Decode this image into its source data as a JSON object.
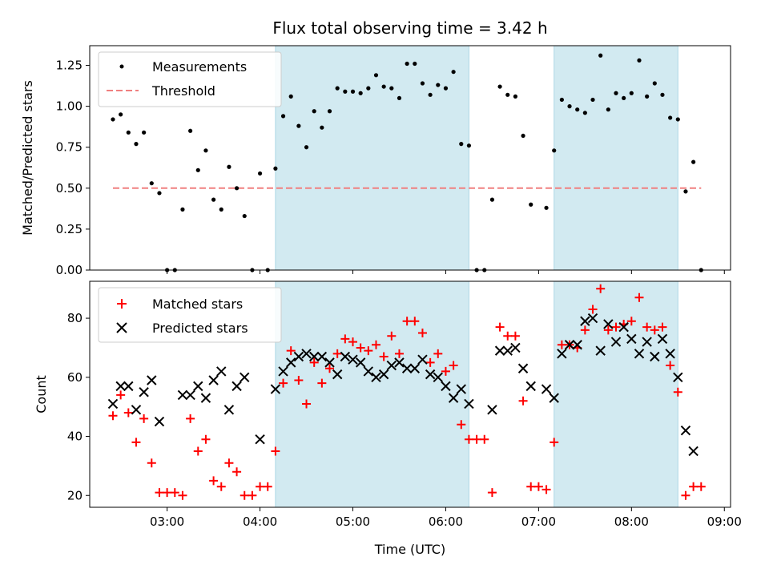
{
  "chart_data": {
    "type": "scatter",
    "title": "Flux total observing time = 3.42 h",
    "colors": {
      "measurements": "#000000",
      "threshold": "#f08080",
      "observing_span": "#add8e6",
      "matched": "#ff0000",
      "predicted": "#000000"
    },
    "x_axis": {
      "label": "Time (UTC)",
      "ticks": [
        "03:00",
        "04:00",
        "05:00",
        "06:00",
        "07:00",
        "08:00",
        "09:00"
      ],
      "range": [
        "02:10",
        "09:04"
      ]
    },
    "shaded_intervals": [
      [
        "04:10",
        "06:15"
      ],
      [
        "07:10",
        "08:30"
      ]
    ],
    "top_panel": {
      "ylabel": "Matched/Predicted stars",
      "ylim": [
        0,
        1.37
      ],
      "yticks": [
        "0.00",
        "0.25",
        "0.50",
        "0.75",
        "1.00",
        "1.25"
      ],
      "legend": {
        "position": "upper-left",
        "entries": [
          "Measurements",
          "Threshold"
        ]
      },
      "threshold": {
        "value": 0.5,
        "x_range": [
          "02:25",
          "08:45"
        ]
      },
      "series": [
        {
          "name": "Measurements",
          "points": [
            [
              "02:25",
              0.92
            ],
            [
              "02:30",
              0.95
            ],
            [
              "02:35",
              0.84
            ],
            [
              "02:40",
              0.77
            ],
            [
              "02:45",
              0.84
            ],
            [
              "02:50",
              0.53
            ],
            [
              "02:55",
              0.47
            ],
            [
              "03:00",
              0.0
            ],
            [
              "03:05",
              0.0
            ],
            [
              "03:10",
              0.37
            ],
            [
              "03:15",
              0.85
            ],
            [
              "03:20",
              0.61
            ],
            [
              "03:25",
              0.73
            ],
            [
              "03:30",
              0.43
            ],
            [
              "03:35",
              0.37
            ],
            [
              "03:40",
              0.63
            ],
            [
              "03:45",
              0.5
            ],
            [
              "03:50",
              0.33
            ],
            [
              "03:55",
              0.0
            ],
            [
              "04:00",
              0.59
            ],
            [
              "04:05",
              0.0
            ],
            [
              "04:10",
              0.62
            ],
            [
              "04:15",
              0.94
            ],
            [
              "04:20",
              1.06
            ],
            [
              "04:25",
              0.88
            ],
            [
              "04:30",
              0.75
            ],
            [
              "04:35",
              0.97
            ],
            [
              "04:40",
              0.87
            ],
            [
              "04:45",
              0.97
            ],
            [
              "04:50",
              1.11
            ],
            [
              "04:55",
              1.09
            ],
            [
              "05:00",
              1.09
            ],
            [
              "05:05",
              1.08
            ],
            [
              "05:10",
              1.11
            ],
            [
              "05:15",
              1.19
            ],
            [
              "05:20",
              1.12
            ],
            [
              "05:25",
              1.11
            ],
            [
              "05:30",
              1.05
            ],
            [
              "05:35",
              1.26
            ],
            [
              "05:40",
              1.26
            ],
            [
              "05:45",
              1.14
            ],
            [
              "05:50",
              1.07
            ],
            [
              "05:55",
              1.13
            ],
            [
              "06:00",
              1.11
            ],
            [
              "06:05",
              1.21
            ],
            [
              "06:10",
              0.77
            ],
            [
              "06:15",
              0.76
            ],
            [
              "06:20",
              0.0
            ],
            [
              "06:25",
              0.0
            ],
            [
              "06:30",
              0.43
            ],
            [
              "06:35",
              1.12
            ],
            [
              "06:40",
              1.07
            ],
            [
              "06:45",
              1.06
            ],
            [
              "06:50",
              0.82
            ],
            [
              "06:55",
              0.4
            ],
            [
              "07:05",
              0.38
            ],
            [
              "07:10",
              0.73
            ],
            [
              "07:15",
              1.04
            ],
            [
              "07:20",
              1.0
            ],
            [
              "07:25",
              0.98
            ],
            [
              "07:30",
              0.96
            ],
            [
              "07:35",
              1.04
            ],
            [
              "07:40",
              1.31
            ],
            [
              "07:45",
              0.98
            ],
            [
              "07:50",
              1.08
            ],
            [
              "07:55",
              1.05
            ],
            [
              "08:00",
              1.08
            ],
            [
              "08:05",
              1.28
            ],
            [
              "08:10",
              1.06
            ],
            [
              "08:15",
              1.14
            ],
            [
              "08:20",
              1.07
            ],
            [
              "08:25",
              0.93
            ],
            [
              "08:30",
              0.92
            ],
            [
              "08:35",
              0.48
            ],
            [
              "08:40",
              0.66
            ],
            [
              "08:45",
              0.0
            ]
          ]
        }
      ]
    },
    "bottom_panel": {
      "ylabel": "Count",
      "ylim": [
        16,
        92.5
      ],
      "yticks": [
        "20",
        "40",
        "60",
        "80"
      ],
      "legend": {
        "position": "upper-left",
        "entries": [
          "Matched stars",
          "Predicted stars"
        ]
      },
      "series": [
        {
          "name": "Matched stars",
          "marker": "plus",
          "points": [
            [
              "02:25",
              47
            ],
            [
              "02:30",
              54
            ],
            [
              "02:35",
              48
            ],
            [
              "02:40",
              38
            ],
            [
              "02:45",
              46
            ],
            [
              "02:50",
              31
            ],
            [
              "02:55",
              21
            ],
            [
              "03:00",
              21
            ],
            [
              "03:05",
              21
            ],
            [
              "03:10",
              20
            ],
            [
              "03:15",
              46
            ],
            [
              "03:20",
              35
            ],
            [
              "03:25",
              39
            ],
            [
              "03:30",
              25
            ],
            [
              "03:35",
              23
            ],
            [
              "03:40",
              31
            ],
            [
              "03:45",
              28
            ],
            [
              "03:50",
              20
            ],
            [
              "03:55",
              20
            ],
            [
              "04:00",
              23
            ],
            [
              "04:05",
              23
            ],
            [
              "04:10",
              35
            ],
            [
              "04:15",
              58
            ],
            [
              "04:20",
              69
            ],
            [
              "04:25",
              59
            ],
            [
              "04:30",
              51
            ],
            [
              "04:35",
              65
            ],
            [
              "04:40",
              58
            ],
            [
              "04:45",
              63
            ],
            [
              "04:50",
              68
            ],
            [
              "04:55",
              73
            ],
            [
              "05:00",
              72
            ],
            [
              "05:05",
              70
            ],
            [
              "05:10",
              69
            ],
            [
              "05:15",
              71
            ],
            [
              "05:20",
              67
            ],
            [
              "05:25",
              74
            ],
            [
              "05:30",
              68
            ],
            [
              "05:35",
              79
            ],
            [
              "05:40",
              79
            ],
            [
              "05:45",
              75
            ],
            [
              "05:50",
              65
            ],
            [
              "05:55",
              68
            ],
            [
              "06:00",
              62
            ],
            [
              "06:05",
              64
            ],
            [
              "06:10",
              44
            ],
            [
              "06:15",
              39
            ],
            [
              "06:20",
              39
            ],
            [
              "06:25",
              39
            ],
            [
              "06:30",
              21
            ],
            [
              "06:35",
              77
            ],
            [
              "06:40",
              74
            ],
            [
              "06:45",
              74
            ],
            [
              "06:50",
              52
            ],
            [
              "06:55",
              23
            ],
            [
              "07:00",
              23
            ],
            [
              "07:05",
              22
            ],
            [
              "07:10",
              38
            ],
            [
              "07:15",
              71
            ],
            [
              "07:20",
              71
            ],
            [
              "07:25",
              70
            ],
            [
              "07:30",
              76
            ],
            [
              "07:35",
              83
            ],
            [
              "07:40",
              90
            ],
            [
              "07:45",
              76
            ],
            [
              "07:50",
              77
            ],
            [
              "07:55",
              78
            ],
            [
              "08:00",
              79
            ],
            [
              "08:05",
              87
            ],
            [
              "08:10",
              77
            ],
            [
              "08:15",
              76
            ],
            [
              "08:20",
              77
            ],
            [
              "08:25",
              64
            ],
            [
              "08:30",
              55
            ],
            [
              "08:35",
              20
            ],
            [
              "08:40",
              23
            ],
            [
              "08:45",
              23
            ]
          ]
        },
        {
          "name": "Predicted stars",
          "marker": "x",
          "points": [
            [
              "02:25",
              51
            ],
            [
              "02:30",
              57
            ],
            [
              "02:35",
              57
            ],
            [
              "02:40",
              49
            ],
            [
              "02:45",
              55
            ],
            [
              "02:50",
              59
            ],
            [
              "02:55",
              45
            ],
            [
              "03:10",
              54
            ],
            [
              "03:15",
              54
            ],
            [
              "03:20",
              57
            ],
            [
              "03:25",
              53
            ],
            [
              "03:30",
              59
            ],
            [
              "03:35",
              62
            ],
            [
              "03:40",
              49
            ],
            [
              "03:45",
              57
            ],
            [
              "03:50",
              60
            ],
            [
              "04:00",
              39
            ],
            [
              "04:10",
              56
            ],
            [
              "04:15",
              62
            ],
            [
              "04:20",
              65
            ],
            [
              "04:25",
              67
            ],
            [
              "04:30",
              68
            ],
            [
              "04:35",
              67
            ],
            [
              "04:40",
              67
            ],
            [
              "04:45",
              65
            ],
            [
              "04:50",
              61
            ],
            [
              "04:55",
              67
            ],
            [
              "05:00",
              66
            ],
            [
              "05:05",
              65
            ],
            [
              "05:10",
              62
            ],
            [
              "05:15",
              60
            ],
            [
              "05:20",
              61
            ],
            [
              "05:25",
              64
            ],
            [
              "05:30",
              65
            ],
            [
              "05:35",
              63
            ],
            [
              "05:40",
              63
            ],
            [
              "05:45",
              66
            ],
            [
              "05:50",
              61
            ],
            [
              "05:55",
              60
            ],
            [
              "06:00",
              57
            ],
            [
              "06:05",
              53
            ],
            [
              "06:10",
              56
            ],
            [
              "06:15",
              51
            ],
            [
              "06:30",
              49
            ],
            [
              "06:35",
              69
            ],
            [
              "06:40",
              69
            ],
            [
              "06:45",
              70
            ],
            [
              "06:50",
              63
            ],
            [
              "06:55",
              57
            ],
            [
              "07:05",
              56
            ],
            [
              "07:10",
              53
            ],
            [
              "07:15",
              68
            ],
            [
              "07:20",
              71
            ],
            [
              "07:25",
              71
            ],
            [
              "07:30",
              79
            ],
            [
              "07:35",
              80
            ],
            [
              "07:40",
              69
            ],
            [
              "07:45",
              78
            ],
            [
              "07:50",
              72
            ],
            [
              "07:55",
              77
            ],
            [
              "08:00",
              73
            ],
            [
              "08:05",
              68
            ],
            [
              "08:10",
              72
            ],
            [
              "08:15",
              67
            ],
            [
              "08:20",
              73
            ],
            [
              "08:25",
              68
            ],
            [
              "08:30",
              60
            ],
            [
              "08:35",
              42
            ],
            [
              "08:40",
              35
            ]
          ]
        }
      ]
    }
  }
}
